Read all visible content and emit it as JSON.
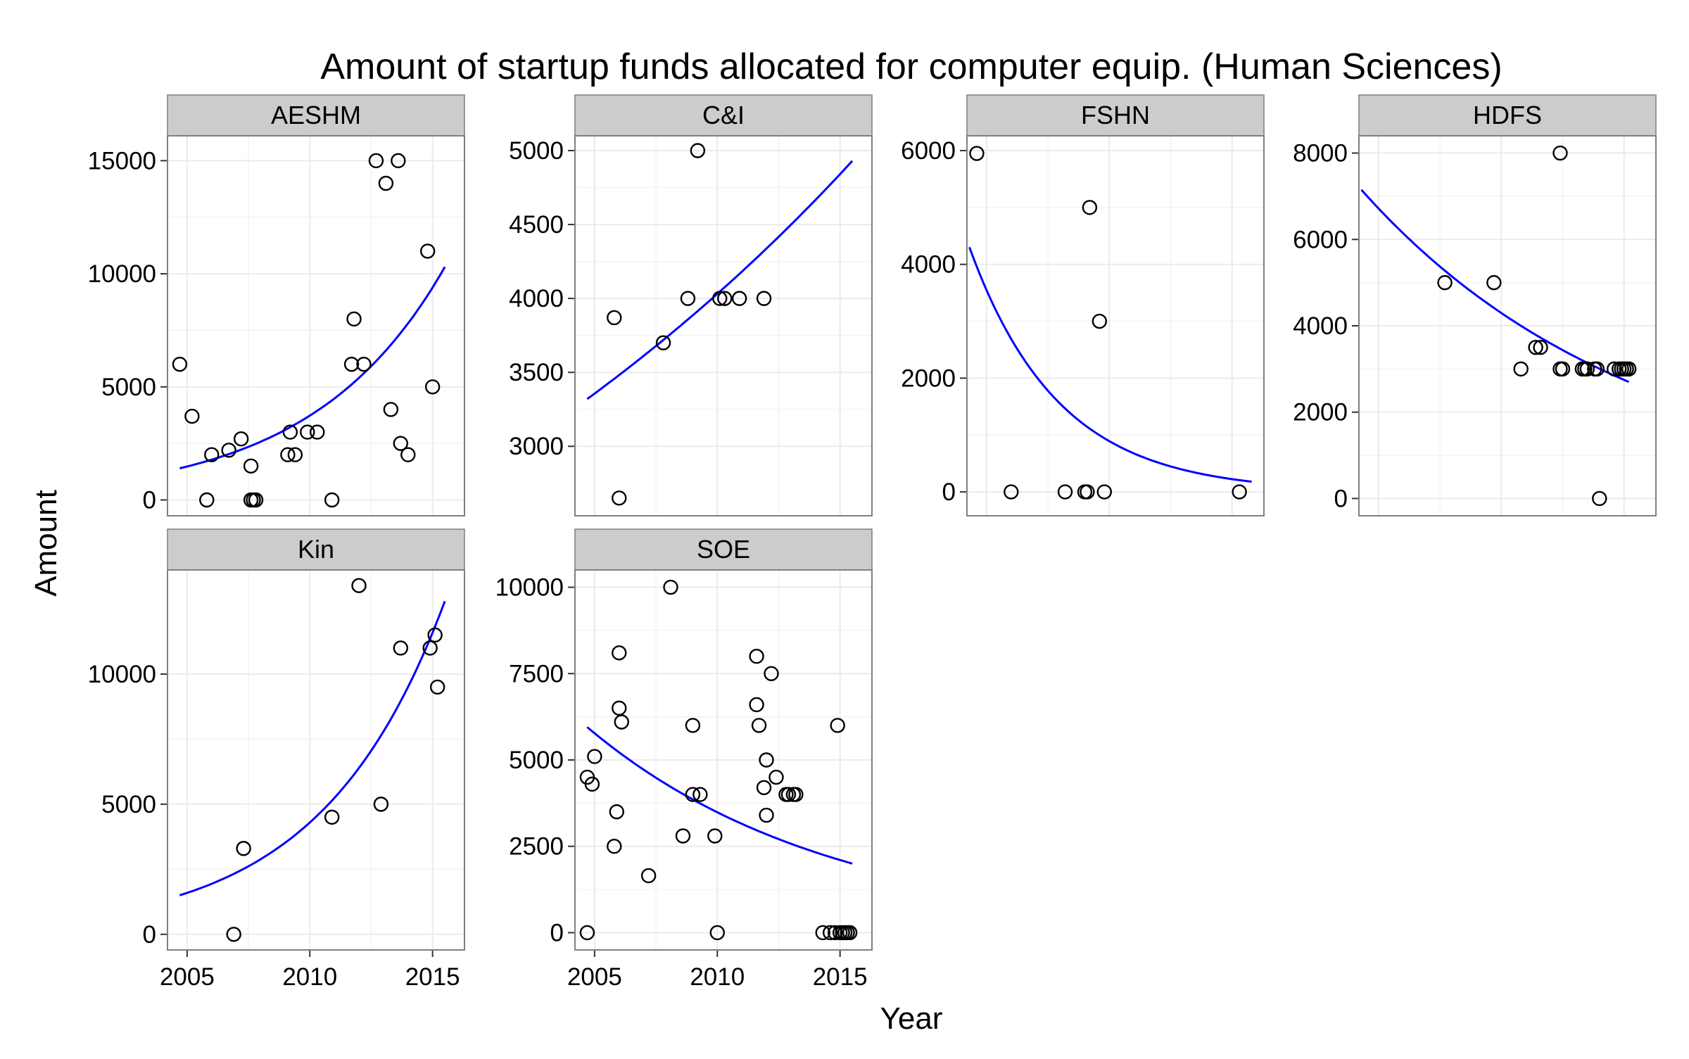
{
  "chart_data": {
    "type": "scatter",
    "title": "Amount of startup funds allocated for computer equip. (Human Sciences)",
    "xlabel": "Year",
    "ylabel": "Amount",
    "xlim": [
      2004.2,
      2016.3
    ],
    "xticks": [
      2005,
      2010,
      2015
    ],
    "grid": true,
    "colors": {
      "panel_background": "#ffffff",
      "grid": "#ebebeb",
      "strip_background": "#cccccc",
      "fit_line": "#0000ff",
      "points": "#000000"
    },
    "panels": [
      {
        "name": "AESHM",
        "ylim": [
          -700,
          16100
        ],
        "yticks": [
          0,
          5000,
          10000,
          15000
        ],
        "points": [
          [
            2004.7,
            6000
          ],
          [
            2005.2,
            3700
          ],
          [
            2005.8,
            0
          ],
          [
            2006.0,
            2000
          ],
          [
            2006.7,
            2200
          ],
          [
            2007.2,
            2700
          ],
          [
            2007.6,
            1500
          ],
          [
            2007.6,
            0
          ],
          [
            2007.7,
            0
          ],
          [
            2007.8,
            0
          ],
          [
            2009.1,
            2000
          ],
          [
            2009.2,
            3000
          ],
          [
            2009.4,
            2000
          ],
          [
            2009.9,
            3000
          ],
          [
            2010.3,
            3000
          ],
          [
            2010.9,
            0
          ],
          [
            2011.7,
            6000
          ],
          [
            2011.8,
            8000
          ],
          [
            2012.2,
            6000
          ],
          [
            2012.7,
            15000
          ],
          [
            2013.1,
            14000
          ],
          [
            2013.3,
            4000
          ],
          [
            2013.6,
            15000
          ],
          [
            2013.7,
            2500
          ],
          [
            2014.0,
            2000
          ],
          [
            2014.8,
            11000
          ],
          [
            2015.0,
            5000
          ]
        ],
        "fit": {
          "x": [
            2004.7,
            2015.5
          ],
          "y_start": 1400,
          "y_end": 10300
        }
      },
      {
        "name": "C&I",
        "ylim": [
          2530,
          5100
        ],
        "yticks": [
          3000,
          3500,
          4000,
          4500,
          5000
        ],
        "points": [
          [
            2005.8,
            3870
          ],
          [
            2006.0,
            2650
          ],
          [
            2007.8,
            3700
          ],
          [
            2008.8,
            4000
          ],
          [
            2009.2,
            5000
          ],
          [
            2010.1,
            4000
          ],
          [
            2010.3,
            4000
          ],
          [
            2010.9,
            4000
          ],
          [
            2011.9,
            4000
          ]
        ],
        "fit": {
          "x": [
            2004.7,
            2015.5
          ],
          "y_start": 3320,
          "y_end": 4930
        }
      },
      {
        "name": "FSHN",
        "ylim": [
          -420,
          6260
        ],
        "yticks": [
          0,
          2000,
          4000,
          6000
        ],
        "points": [
          [
            2004.6,
            5950
          ],
          [
            2006.0,
            0
          ],
          [
            2008.2,
            0
          ],
          [
            2009.0,
            0
          ],
          [
            2009.1,
            0
          ],
          [
            2009.2,
            5000
          ],
          [
            2009.6,
            3000
          ],
          [
            2009.8,
            0
          ],
          [
            2015.3,
            0
          ]
        ],
        "fit": {
          "x": [
            2004.3,
            2015.8
          ],
          "y_start": 4300,
          "y_end": 180
        }
      },
      {
        "name": "HDFS",
        "ylim": [
          -400,
          8400
        ],
        "yticks": [
          0,
          2000,
          4000,
          6000,
          8000
        ],
        "points": [
          [
            2007.7,
            5000
          ],
          [
            2009.7,
            5000
          ],
          [
            2010.8,
            3000
          ],
          [
            2011.4,
            3500
          ],
          [
            2011.6,
            3500
          ],
          [
            2012.4,
            3000
          ],
          [
            2012.5,
            3000
          ],
          [
            2013.3,
            3000
          ],
          [
            2013.4,
            3000
          ],
          [
            2013.5,
            3000
          ],
          [
            2013.8,
            3000
          ],
          [
            2013.9,
            3000
          ],
          [
            2014.0,
            0
          ],
          [
            2012.4,
            8000
          ],
          [
            2014.6,
            3000
          ],
          [
            2014.8,
            3000
          ],
          [
            2014.9,
            3000
          ],
          [
            2015.0,
            3000
          ],
          [
            2015.1,
            3000
          ],
          [
            2015.2,
            3000
          ]
        ],
        "fit": {
          "x": [
            2004.3,
            2015.2
          ],
          "y_start": 7150,
          "y_end": 2700
        }
      },
      {
        "name": "Kin",
        "ylim": [
          -600,
          14000
        ],
        "yticks": [
          0,
          5000,
          10000
        ],
        "points": [
          [
            2006.9,
            0
          ],
          [
            2007.3,
            3300
          ],
          [
            2010.9,
            4500
          ],
          [
            2012.0,
            13400
          ],
          [
            2012.9,
            5000
          ],
          [
            2013.7,
            11000
          ],
          [
            2014.9,
            11000
          ],
          [
            2015.1,
            11500
          ],
          [
            2015.2,
            9500
          ]
        ],
        "fit": {
          "x": [
            2004.7,
            2015.5
          ],
          "y_start": 1500,
          "y_end": 12800
        }
      },
      {
        "name": "SOE",
        "ylim": [
          -500,
          10500
        ],
        "yticks": [
          0,
          2500,
          5000,
          7500,
          10000
        ],
        "points": [
          [
            2004.7,
            0
          ],
          [
            2004.7,
            4500
          ],
          [
            2004.9,
            4300
          ],
          [
            2005.0,
            5100
          ],
          [
            2005.8,
            2500
          ],
          [
            2005.9,
            3500
          ],
          [
            2006.0,
            8100
          ],
          [
            2006.0,
            6500
          ],
          [
            2006.1,
            6100
          ],
          [
            2007.2,
            1650
          ],
          [
            2008.1,
            10000
          ],
          [
            2008.6,
            2800
          ],
          [
            2009.0,
            6000
          ],
          [
            2009.0,
            4000
          ],
          [
            2009.3,
            4000
          ],
          [
            2009.9,
            2800
          ],
          [
            2010.0,
            0
          ],
          [
            2011.6,
            8000
          ],
          [
            2011.6,
            6600
          ],
          [
            2011.7,
            6000
          ],
          [
            2011.9,
            4200
          ],
          [
            2012.0,
            5000
          ],
          [
            2012.0,
            3400
          ],
          [
            2012.2,
            7500
          ],
          [
            2012.4,
            4500
          ],
          [
            2012.8,
            4000
          ],
          [
            2012.9,
            4000
          ],
          [
            2013.1,
            4000
          ],
          [
            2013.2,
            4000
          ],
          [
            2014.3,
            0
          ],
          [
            2014.6,
            0
          ],
          [
            2014.8,
            0
          ],
          [
            2014.9,
            6000
          ],
          [
            2015.0,
            0
          ],
          [
            2015.1,
            0
          ],
          [
            2015.2,
            0
          ],
          [
            2015.3,
            0
          ],
          [
            2015.4,
            0
          ]
        ],
        "fit": {
          "x": [
            2004.7,
            2015.5
          ],
          "y_start": 5950,
          "y_end": 2000
        }
      }
    ]
  }
}
